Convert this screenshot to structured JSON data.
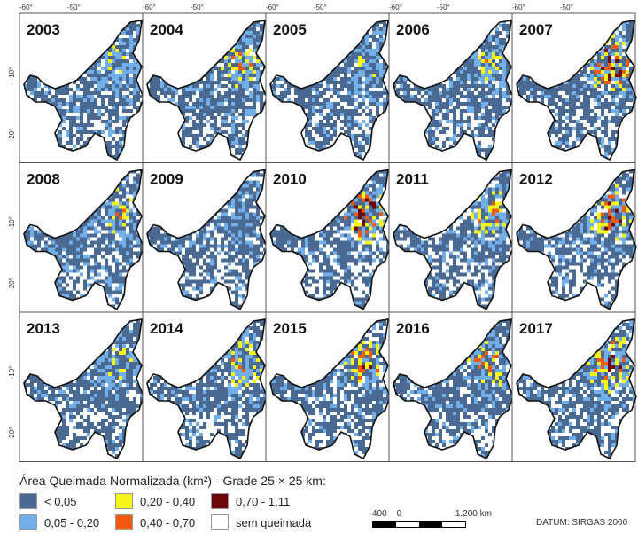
{
  "panels": [
    {
      "year": "2003"
    },
    {
      "year": "2004"
    },
    {
      "year": "2005"
    },
    {
      "year": "2006"
    },
    {
      "year": "2007"
    },
    {
      "year": "2008"
    },
    {
      "year": "2009"
    },
    {
      "year": "2010"
    },
    {
      "year": "2011"
    },
    {
      "year": "2012"
    },
    {
      "year": "2013"
    },
    {
      "year": "2014"
    },
    {
      "year": "2015"
    },
    {
      "year": "2016"
    },
    {
      "year": "2017"
    }
  ],
  "axes": {
    "lon_ticks": [
      "-60°",
      "-50°"
    ],
    "lat_ticks": [
      "-10°",
      "-20°"
    ]
  },
  "legend": {
    "title": "Área Queimada Normalizada (km²) - Grade 25 × 25 km:",
    "classes": [
      {
        "label": "< 0,05",
        "color": "#4a6a94"
      },
      {
        "label": "0,05 - 0,20",
        "color": "#72aee8"
      },
      {
        "label": "0,20 - 0,40",
        "color": "#f5f51a"
      },
      {
        "label": "0,40 - 0,70",
        "color": "#f25a12"
      },
      {
        "label": "0,70 - 1,11",
        "color": "#6e0808"
      },
      {
        "label": "sem queimada",
        "color": "#ffffff"
      }
    ]
  },
  "scale_bar": {
    "left": "400",
    "zero": "0",
    "right": "1.200 km"
  },
  "datum": "DATUM: SIRGAS 2000"
}
